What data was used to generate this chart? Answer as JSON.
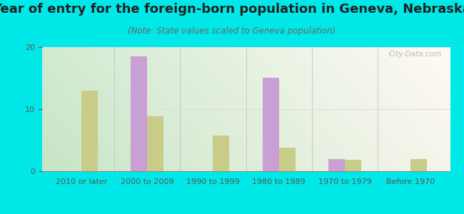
{
  "title": "Year of entry for the foreign-born population in Geneva, Nebraska",
  "subtitle": "(Note: State values scaled to Geneva population)",
  "categories": [
    "2010 or later",
    "2000 to 2009",
    "1990 to 1999",
    "1980 to 1989",
    "1970 to 1979",
    "Before 1970"
  ],
  "geneva_values": [
    0,
    18.5,
    0,
    15.0,
    2.0,
    0
  ],
  "nebraska_values": [
    13.0,
    8.8,
    5.8,
    3.8,
    1.8,
    2.0
  ],
  "geneva_color": "#c8a0d4",
  "nebraska_color": "#c8cc88",
  "bg_outer": "#00e8e8",
  "ylim": [
    0,
    20
  ],
  "yticks": [
    0,
    10,
    20
  ],
  "bar_width": 0.25,
  "title_fontsize": 13,
  "subtitle_fontsize": 8.5,
  "tick_fontsize": 8,
  "legend_fontsize": 9,
  "tick_color": "#555555",
  "grid_color": "#dddddd"
}
